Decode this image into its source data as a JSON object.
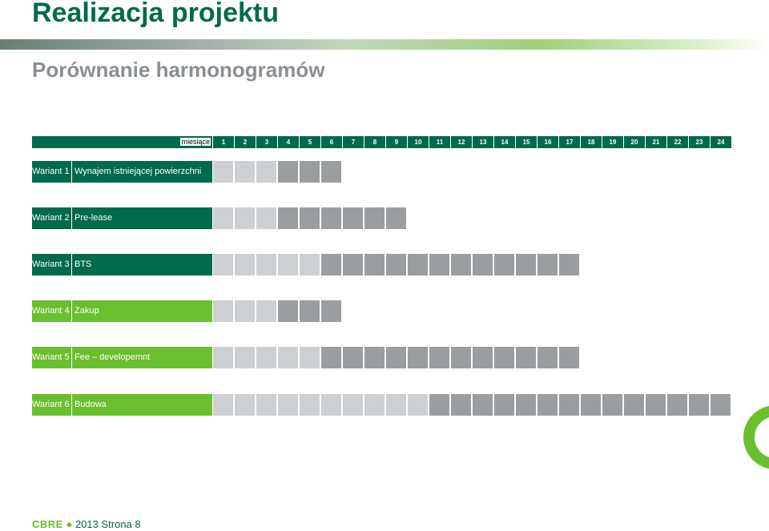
{
  "slide": {
    "title": "Realizacja projektu",
    "subtitle": "Porównanie harmonogramów"
  },
  "header": {
    "months_label": "miesiące",
    "months": [
      "1",
      "2",
      "3",
      "4",
      "5",
      "6",
      "7",
      "8",
      "9",
      "10",
      "11",
      "12",
      "13",
      "14",
      "15",
      "16",
      "17",
      "18",
      "19",
      "20",
      "21",
      "22",
      "23",
      "24"
    ]
  },
  "variants": [
    {
      "name": "Wariant 1",
      "description": "Wynajem istniejącej powierzchni",
      "label_color": "#006a4d",
      "light_months": 3,
      "dark_months": 3
    },
    {
      "name": "Wariant 2",
      "description": "Pre-lease",
      "label_color": "#006a4d",
      "light_months": 3,
      "dark_months": 6
    },
    {
      "name": "Wariant 3",
      "description": "BTS",
      "label_color": "#006a4d",
      "light_months": 5,
      "dark_months": 12
    },
    {
      "name": "Wariant 4",
      "description": "Zakup",
      "label_color": "#6abf2e",
      "light_months": 3,
      "dark_months": 3
    },
    {
      "name": "Wariant 5",
      "description": "Fee – developemnt",
      "label_color": "#6abf2e",
      "light_months": 5,
      "dark_months": 12
    },
    {
      "name": "Wariant 6",
      "description": "Budowa",
      "label_color": "#6abf2e",
      "light_months": 10,
      "dark_months": 14
    }
  ],
  "colors": {
    "dark_green": "#006a4d",
    "light_green": "#6abf2e",
    "light_gray_cell": "#cdd0d2",
    "dark_gray_cell": "#9a9ea1"
  },
  "footer": {
    "logo": "CBRE",
    "text": "2013 Strona 8"
  }
}
